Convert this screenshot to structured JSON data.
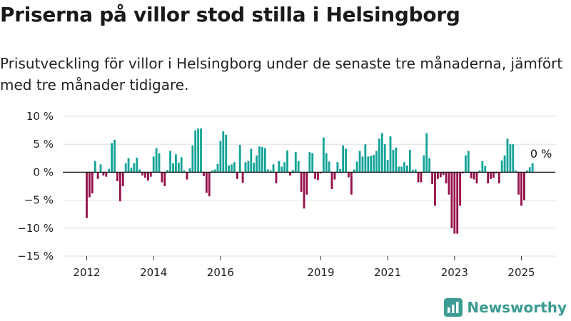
{
  "title": "Priserna på villor stod stilla i Helsingborg",
  "subtitle": "Prisutveckling för villor i Helsingborg under de senaste tre månaderna, jämfört med tre månader tidigare.",
  "brand": {
    "name": "Newsworthy",
    "logo_icon": "newsworthy-logo-icon",
    "color": "#3c9c92"
  },
  "colors": {
    "positive": "#13a397",
    "negative": "#96104a",
    "zero_line": "#111111",
    "grid": "#dddddd"
  },
  "chart_data": {
    "type": "bar",
    "ylim": [
      -15,
      10
    ],
    "y_ticks": [
      10,
      5,
      0,
      -5,
      -10,
      -15
    ],
    "y_tick_labels": [
      "10 %",
      "5 %",
      "0 %",
      "−5 %",
      "−10 %",
      "−15 %"
    ],
    "x_tick_labels": [
      "2012",
      "2014",
      "2016",
      "2019",
      "2021",
      "2023",
      "2025"
    ],
    "x_tick_dates": [
      "2012-01",
      "2014-01",
      "2016-01",
      "2019-01",
      "2021-01",
      "2023-01",
      "2025-01"
    ],
    "start_month": "2012-01",
    "end_month": "2025-03",
    "grid": true,
    "annotation": "0 %",
    "values": [
      -8.2,
      -4.5,
      -3.8,
      2.0,
      -1.2,
      1.4,
      -0.6,
      -0.8,
      0.6,
      5.2,
      5.8,
      -1.6,
      -5.2,
      -2.5,
      1.6,
      2.5,
      0.8,
      1.6,
      2.6,
      0.5,
      -0.6,
      -1.0,
      -1.5,
      -0.8,
      2.8,
      4.3,
      3.4,
      -1.8,
      -2.5,
      0.4,
      3.8,
      1.6,
      3.2,
      1.7,
      2.7,
      0.3,
      -1.3,
      0.7,
      4.8,
      7.5,
      7.8,
      7.8,
      -0.7,
      -3.7,
      -4.3,
      0.3,
      0.5,
      1.5,
      5.6,
      7.3,
      6.7,
      1.2,
      1.4,
      1.8,
      -1.2,
      4.9,
      -1.9,
      1.8,
      2.0,
      4.2,
      1.7,
      3.0,
      4.6,
      4.5,
      4.3,
      0.5,
      0.3,
      1.4,
      -2.0,
      2.0,
      1.0,
      1.8,
      3.9,
      -0.6,
      0.4,
      3.6,
      2.0,
      -3.5,
      -6.5,
      -4.0,
      3.6,
      3.4,
      -1.2,
      -1.4,
      -0.2,
      6.2,
      3.4,
      1.9,
      -3.0,
      -1.3,
      1.8,
      0.6,
      4.8,
      4.2,
      -0.9,
      -4.0,
      0.5,
      1.9,
      3.8,
      2.8,
      5.0,
      2.8,
      2.9,
      3.1,
      3.8,
      6.0,
      7.0,
      5.0,
      2.2,
      6.4,
      4.0,
      4.4,
      1.0,
      1.0,
      1.8,
      1.2,
      4.0,
      0.4,
      0.5,
      -1.8,
      -1.8,
      3.0,
      7.0,
      2.5,
      -2.1,
      -6.0,
      -1.2,
      -0.9,
      -0.5,
      -2.0,
      -4.0,
      -10.0,
      -11.0,
      -11.0,
      -6.0,
      -0.2,
      3.0,
      3.8,
      -1.1,
      -1.3,
      -2.0,
      0.3,
      2.0,
      1.1,
      -2.0,
      -1.2,
      -1.0,
      -0.2,
      -2.0,
      2.1,
      3.0,
      6.0,
      5.0,
      5.0,
      0.3,
      -4.0,
      -6.0,
      -5.0,
      0.3,
      0.9,
      1.6
    ]
  }
}
